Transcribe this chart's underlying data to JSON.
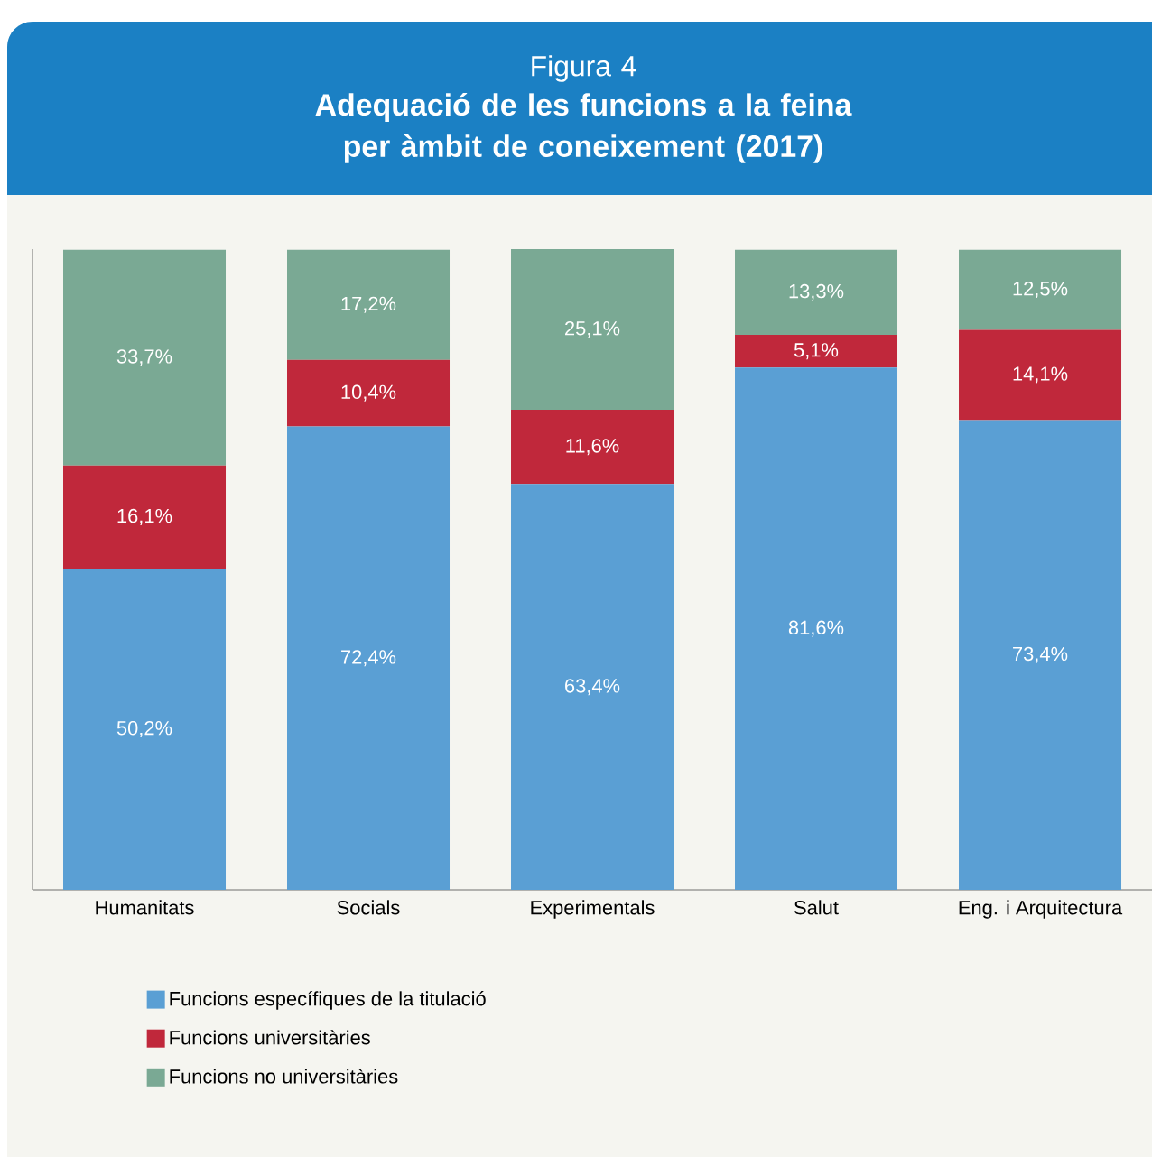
{
  "chart_data": {
    "type": "bar",
    "stacked": true,
    "subtitle": "Figura 4",
    "title": "Adequació de les funcions a la feina per àmbit de coneixement (2017)",
    "categories": [
      "Humanitats",
      "Socials",
      "Experimentals",
      "Salut",
      "Eng. i Arquitectura"
    ],
    "legend": "bottom",
    "tick_labels": "x",
    "series": [
      {
        "name": "Funcions específiques de la titulació",
        "color": "#5a9fd4",
        "values": [
          50.2,
          72.4,
          63.4,
          81.6,
          73.4
        ],
        "value_labels": [
          "50,2%",
          "72,4%",
          "63,4%",
          "81,6%",
          "73,4%"
        ]
      },
      {
        "name": "Funcions universitàries",
        "color": "#c0283b",
        "values": [
          16.1,
          10.4,
          11.6,
          5.1,
          14.1
        ],
        "value_labels": [
          "16,1%",
          "10,4%",
          "11,6%",
          "5,1%",
          "14,1%"
        ]
      },
      {
        "name": "Funcions no universitàries",
        "color": "#7aa994",
        "values": [
          33.7,
          17.2,
          25.1,
          13.3,
          12.5
        ],
        "value_labels": [
          "33,7%",
          "17,2%",
          "25,1%",
          "13,3%",
          "12,5%"
        ]
      }
    ]
  }
}
